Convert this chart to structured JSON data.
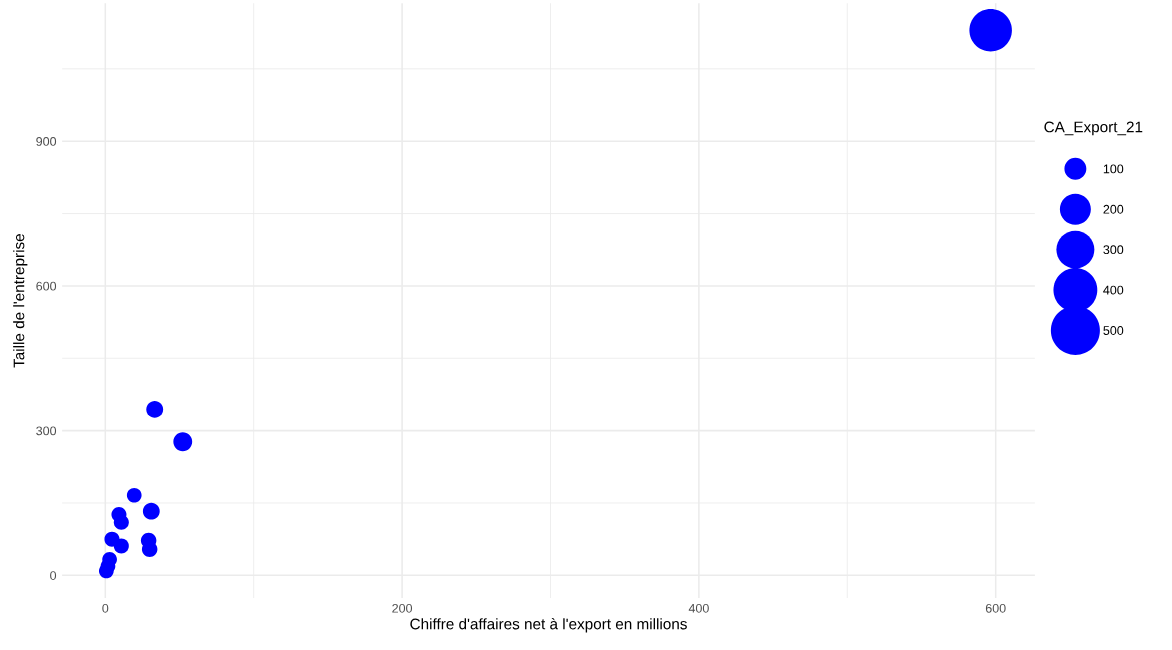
{
  "chart_data": {
    "type": "bubble",
    "xlabel": "Chiffre d'affaires net à l'export en millions",
    "ylabel": "Taille de l'entreprise",
    "legend_title": "CA_Export_21",
    "x": [
      33.3,
      52.2,
      19.5,
      31,
      9.2,
      10.8,
      4.5,
      10.8,
      29.2,
      29.9,
      2.9,
      1.8,
      0.7,
      596.6
    ],
    "series": [
      {
        "color": "#0000ff",
        "values": [
          344,
          277,
          166,
          133,
          126,
          110,
          75,
          61,
          72,
          54,
          33,
          19,
          9,
          1130
        ],
        "sizes": [
          59,
          74,
          45,
          59,
          47,
          47,
          47,
          47,
          50,
          50,
          45,
          45,
          45,
          376
        ]
      }
    ],
    "size_legend": [
      100,
      200,
      300,
      400,
      500
    ],
    "xlim": [
      -29.1,
      626.4
    ],
    "ylim": [
      -47,
      1186
    ],
    "xticks": [
      0,
      200,
      400,
      600
    ],
    "yticks": [
      0,
      300,
      600,
      900
    ],
    "grid": true
  }
}
